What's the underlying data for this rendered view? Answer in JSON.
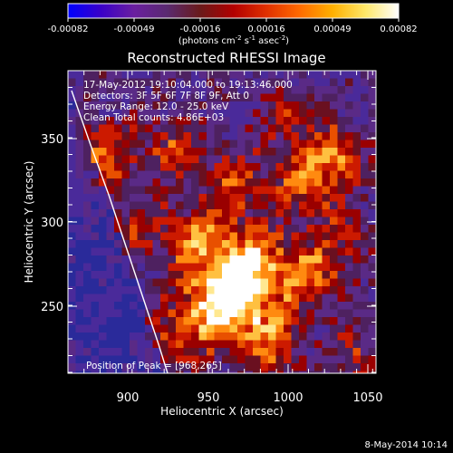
{
  "colorbar": {
    "ticks": [
      "-0.00082",
      "-0.00049",
      "-0.00016",
      "0.00016",
      "0.00049",
      "0.00082"
    ],
    "units_main": "(photons cm",
    "units_exp1": "-2",
    "units_mid": " s",
    "units_exp2": "-1",
    "units_tail": " asec",
    "units_exp3": "-2",
    "units_close": ")",
    "gradient": [
      "#0000ff",
      "#3a00c8",
      "#6a1fa0",
      "#5a2a70",
      "#6a1a1a",
      "#b20000",
      "#e03000",
      "#ff6a00",
      "#ffb000",
      "#ffe86a",
      "#ffffff"
    ]
  },
  "plot": {
    "title": "Reconstructed RHESSI Image",
    "xlabel": "Heliocentric X (arcsec)",
    "ylabel": "Heliocentric Y (arcsec)",
    "x_ticks": [
      "900",
      "950",
      "1000",
      "1050"
    ],
    "y_ticks": [
      "350",
      "300",
      "250"
    ],
    "info_lines": [
      "17-May-2012 19:10:04.000 to 19:13:46.000",
      "Detectors: 3F 5F 6F 7F 8F 9F, Att 0",
      "Energy Range: 12.0 - 25.0 keV",
      "Clean     Total counts: 4.86E+03"
    ],
    "peak_label": "Position of Peak = [968,265]",
    "footer_date": "8-May-2014 10:14"
  }
}
